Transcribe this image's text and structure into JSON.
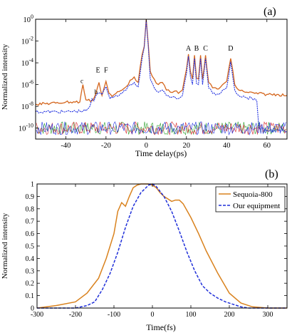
{
  "figure": {
    "panel_a_label": "(a)",
    "panel_b_label": "(b)"
  },
  "chart_data": [
    {
      "panel": "(a)",
      "type": "line",
      "xlabel": "Time delay(ps)",
      "ylabel": "Normalized intensity",
      "xlim": [
        -55,
        70
      ],
      "ylim_log10": [
        -11,
        0
      ],
      "yscale": "log",
      "x_ticks": [
        -40,
        -20,
        0,
        20,
        40,
        60
      ],
      "y_ticks": [
        "10^0",
        "10^-2",
        "10^-4",
        "10^-6",
        "10^-8",
        "10^-10"
      ],
      "annotations": [
        {
          "text": "A",
          "x": 21,
          "y": "10^-3"
        },
        {
          "text": "B",
          "x": 25,
          "y": "10^-3"
        },
        {
          "text": "C",
          "x": 29.5,
          "y": "10^-3"
        },
        {
          "text": "D",
          "x": 42,
          "y": "10^-3"
        },
        {
          "text": "E",
          "x": -24,
          "y": "10^-5"
        },
        {
          "text": "F",
          "x": -20,
          "y": "10^-5"
        },
        {
          "text": "c",
          "x": -32,
          "y": "10^-6"
        },
        {
          "text": "b",
          "x": -25,
          "y": "10^-7"
        }
      ],
      "series": [
        {
          "color": "#d4651c",
          "x": [
            -55,
            -45,
            -40,
            -33,
            -31.5,
            -30,
            -27,
            -25,
            -23.5,
            -22,
            -20,
            -18.5,
            -17,
            -15,
            -12,
            -10,
            -8,
            -6,
            -4,
            -2,
            -1,
            0,
            1,
            2,
            4,
            6,
            8,
            10,
            12,
            14,
            16,
            18,
            20,
            21,
            22,
            23,
            24,
            25,
            26,
            27,
            28,
            29.5,
            31,
            33,
            36,
            38,
            40,
            42,
            44,
            46,
            50,
            54,
            60,
            65,
            70
          ],
          "log10_y": [
            -7.8,
            -7.7,
            -7.6,
            -7.6,
            -6.0,
            -7.4,
            -7.5,
            -6.8,
            -5.8,
            -7.0,
            -5.7,
            -6.8,
            -7.1,
            -6.8,
            -6.5,
            -6.2,
            -5.6,
            -5.3,
            -5.8,
            -3.2,
            -2.5,
            0,
            -2.2,
            -4.8,
            -5.5,
            -6.0,
            -5.8,
            -6.5,
            -6.7,
            -6.6,
            -6.8,
            -6.5,
            -4.6,
            -3.2,
            -4.8,
            -5.5,
            -3.3,
            -5.4,
            -5.5,
            -3.3,
            -5.5,
            -3.3,
            -5.8,
            -6.3,
            -6.4,
            -6.0,
            -5.7,
            -3.6,
            -6.0,
            -6.5,
            -6.7,
            -6.8,
            -6.9,
            -6.9,
            -7.0
          ]
        },
        {
          "color": "#1f2fe0",
          "x": [
            -55,
            -40,
            -30,
            -28,
            -27,
            -26,
            -25,
            -24,
            -22,
            -20,
            -18,
            -15,
            -12,
            -10,
            -8,
            -6,
            -4,
            -2,
            -1,
            0,
            1,
            2,
            4,
            6,
            8,
            10,
            12,
            14,
            16,
            18,
            20,
            21,
            22,
            23,
            24,
            25,
            26,
            27,
            28,
            29.5,
            31,
            33,
            36,
            38,
            40,
            42,
            44,
            46,
            50,
            54,
            55,
            56,
            60,
            70
          ],
          "log10_y": [
            -8.5,
            -8.5,
            -8.4,
            -8.0,
            -7.3,
            -7.5,
            -7.0,
            -6.8,
            -6.9,
            -6.2,
            -7.3,
            -7.0,
            -6.8,
            -6.5,
            -6.0,
            -5.8,
            -6.2,
            -3.5,
            -2.6,
            -0.1,
            -2.4,
            -5.5,
            -6.3,
            -6.7,
            -6.5,
            -7.0,
            -7.2,
            -7.1,
            -7.3,
            -7.0,
            -5.0,
            -3.4,
            -5.3,
            -6.0,
            -3.6,
            -5.9,
            -6.0,
            -3.6,
            -6.0,
            -3.6,
            -6.3,
            -6.8,
            -6.9,
            -6.5,
            -6.3,
            -3.9,
            -6.5,
            -7.0,
            -7.2,
            -7.3,
            -7.5,
            -10.0,
            -10.2,
            -10.3
          ]
        }
      ]
    },
    {
      "panel": "(b)",
      "type": "line",
      "xlabel": "Time(fs)",
      "ylabel": "Normalized intensity",
      "xlim": [
        -300,
        350
      ],
      "ylim": [
        0,
        1
      ],
      "x_ticks": [
        -300,
        -200,
        -100,
        0,
        100,
        200,
        300
      ],
      "y_ticks": [
        0,
        0.1,
        0.2,
        0.3,
        0.4,
        0.5,
        0.6,
        0.7,
        0.8,
        0.9,
        1
      ],
      "legend_position": "top-right",
      "series": [
        {
          "name": "Sequoia-800",
          "color": "#d9821e",
          "dash": "solid",
          "x": [
            -300,
            -250,
            -200,
            -170,
            -140,
            -120,
            -100,
            -90,
            -80,
            -70,
            -60,
            -50,
            -40,
            -30,
            -20,
            -10,
            0,
            10,
            20,
            30,
            40,
            50,
            60,
            70,
            80,
            100,
            120,
            140,
            170,
            200,
            230,
            260,
            300,
            350
          ],
          "values": [
            0.0,
            0.02,
            0.05,
            0.12,
            0.24,
            0.4,
            0.6,
            0.78,
            0.85,
            0.82,
            0.9,
            0.97,
            0.99,
            1.0,
            1.0,
            1.0,
            0.99,
            0.97,
            0.93,
            0.9,
            0.88,
            0.86,
            0.87,
            0.87,
            0.84,
            0.73,
            0.6,
            0.46,
            0.28,
            0.12,
            0.04,
            0.01,
            0.0,
            0.0
          ]
        },
        {
          "name": "Our equipment",
          "color": "#1f2fd9",
          "dash": "dashed",
          "x": [
            -300,
            -200,
            -170,
            -150,
            -130,
            -110,
            -90,
            -70,
            -50,
            -30,
            -10,
            0,
            10,
            30,
            50,
            70,
            90,
            110,
            130,
            150,
            170,
            190,
            210,
            230,
            250,
            300,
            350
          ],
          "values": [
            0.0,
            0.0,
            0.02,
            0.05,
            0.15,
            0.28,
            0.45,
            0.65,
            0.82,
            0.93,
            0.99,
            1.0,
            0.98,
            0.9,
            0.78,
            0.62,
            0.45,
            0.3,
            0.18,
            0.12,
            0.08,
            0.05,
            0.03,
            0.01,
            0.0,
            0.0,
            0.0
          ]
        }
      ]
    }
  ]
}
